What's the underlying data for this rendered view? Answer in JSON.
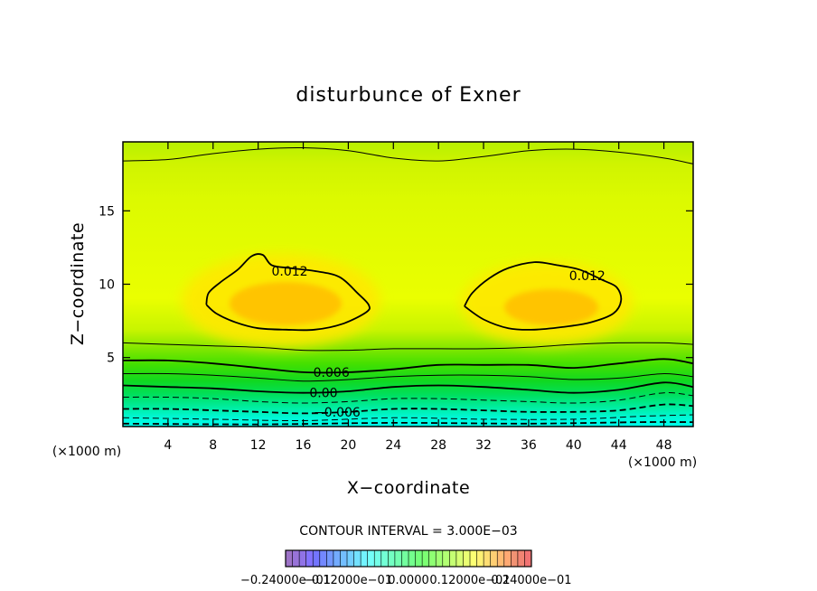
{
  "chart_data": {
    "type": "contour",
    "title": "disturbunce of Exner",
    "xlabel": "X−coordinate",
    "ylabel": "Z−coordinate",
    "x_unit": "(×1000 m)",
    "y_unit": "(×1000 m)",
    "xlim": [
      0,
      50.6
    ],
    "ylim": [
      0.3,
      19.7
    ],
    "x_ticks": [
      4,
      8,
      12,
      16,
      20,
      24,
      28,
      32,
      36,
      40,
      44,
      48
    ],
    "y_ticks": [
      5,
      10,
      15
    ],
    "contour_interval_text": "CONTOUR INTERVAL = 3.000E−03",
    "contour_interval": 0.003,
    "contour_labels": [
      {
        "text": "0.012",
        "x": 14.8,
        "y": 10.9
      },
      {
        "text": "0.012",
        "x": 41.2,
        "y": 10.6
      },
      {
        "text": "0.006",
        "x": 18.5,
        "y": 4.0
      },
      {
        "text": "0.00",
        "x": 17.8,
        "y": 2.6
      },
      {
        "text": "−0.006",
        "x": 19.0,
        "y": 1.3
      }
    ],
    "contours": [
      {
        "level": 0.012,
        "points": [
          [
            7.4,
            8.6
          ],
          [
            7.6,
            9.4
          ],
          [
            8.6,
            10.1
          ],
          [
            10.2,
            11.0
          ],
          [
            11.4,
            11.9
          ],
          [
            12.4,
            12.0
          ],
          [
            13.2,
            11.3
          ],
          [
            14.8,
            11.1
          ],
          [
            17.0,
            10.9
          ],
          [
            19.2,
            10.5
          ],
          [
            20.8,
            9.4
          ],
          [
            21.8,
            8.6
          ],
          [
            21.6,
            8.1
          ],
          [
            19.5,
            7.3
          ],
          [
            17.0,
            6.9
          ],
          [
            14.5,
            6.9
          ],
          [
            12.0,
            7.0
          ],
          [
            10.0,
            7.4
          ],
          [
            8.3,
            8.0
          ],
          [
            7.4,
            8.6
          ]
        ]
      },
      {
        "level": 0.012,
        "points": [
          [
            30.3,
            8.5
          ],
          [
            31.0,
            9.4
          ],
          [
            32.5,
            10.4
          ],
          [
            34.2,
            11.1
          ],
          [
            36.5,
            11.5
          ],
          [
            38.5,
            11.3
          ],
          [
            40.5,
            11.0
          ],
          [
            42.5,
            10.3
          ],
          [
            43.8,
            9.8
          ],
          [
            44.2,
            8.9
          ],
          [
            43.5,
            8.0
          ],
          [
            41.5,
            7.4
          ],
          [
            39.2,
            7.1
          ],
          [
            36.5,
            6.9
          ],
          [
            34.2,
            7.0
          ],
          [
            32.0,
            7.6
          ],
          [
            30.3,
            8.5
          ]
        ]
      },
      {
        "level": 0.003,
        "points": [
          [
            0,
            18.4
          ],
          [
            4,
            18.5
          ],
          [
            8,
            18.9
          ],
          [
            12,
            19.2
          ],
          [
            16,
            19.3
          ],
          [
            20,
            19.1
          ],
          [
            24,
            18.6
          ],
          [
            28,
            18.4
          ],
          [
            32,
            18.7
          ],
          [
            36,
            19.1
          ],
          [
            40,
            19.2
          ],
          [
            44,
            19.0
          ],
          [
            48,
            18.6
          ],
          [
            50.6,
            18.2
          ]
        ]
      },
      {
        "level": 0.009,
        "points": [
          [
            0,
            6.0
          ],
          [
            4,
            5.9
          ],
          [
            8,
            5.8
          ],
          [
            12,
            5.7
          ],
          [
            16,
            5.5
          ],
          [
            20,
            5.5
          ],
          [
            24,
            5.6
          ],
          [
            28,
            5.6
          ],
          [
            32,
            5.6
          ],
          [
            36,
            5.7
          ],
          [
            40,
            5.9
          ],
          [
            44,
            6.0
          ],
          [
            48,
            6.0
          ],
          [
            50.6,
            5.9
          ]
        ]
      },
      {
        "level": 0.006,
        "points": [
          [
            0,
            4.8
          ],
          [
            4,
            4.8
          ],
          [
            8,
            4.6
          ],
          [
            12,
            4.3
          ],
          [
            16,
            4.0
          ],
          [
            20,
            4.0
          ],
          [
            24,
            4.2
          ],
          [
            28,
            4.5
          ],
          [
            32,
            4.5
          ],
          [
            36,
            4.5
          ],
          [
            40,
            4.3
          ],
          [
            44,
            4.6
          ],
          [
            48,
            4.9
          ],
          [
            50.6,
            4.6
          ]
        ]
      },
      {
        "level": 0.003,
        "points": [
          [
            0,
            3.9
          ],
          [
            4,
            3.9
          ],
          [
            8,
            3.8
          ],
          [
            12,
            3.6
          ],
          [
            16,
            3.4
          ],
          [
            20,
            3.5
          ],
          [
            24,
            3.7
          ],
          [
            28,
            3.8
          ],
          [
            32,
            3.8
          ],
          [
            36,
            3.7
          ],
          [
            40,
            3.5
          ],
          [
            44,
            3.6
          ],
          [
            48,
            3.9
          ],
          [
            50.6,
            3.7
          ]
        ]
      },
      {
        "level": 0.0,
        "points": [
          [
            0,
            3.1
          ],
          [
            4,
            3.0
          ],
          [
            8,
            2.9
          ],
          [
            12,
            2.7
          ],
          [
            16,
            2.6
          ],
          [
            20,
            2.7
          ],
          [
            24,
            3.0
          ],
          [
            28,
            3.1
          ],
          [
            32,
            3.0
          ],
          [
            36,
            2.8
          ],
          [
            40,
            2.6
          ],
          [
            44,
            2.8
          ],
          [
            48,
            3.3
          ],
          [
            50.6,
            3.0
          ]
        ]
      },
      {
        "level": -0.003,
        "points": [
          [
            0,
            2.3
          ],
          [
            4,
            2.3
          ],
          [
            8,
            2.2
          ],
          [
            12,
            2.0
          ],
          [
            16,
            1.9
          ],
          [
            20,
            2.0
          ],
          [
            24,
            2.2
          ],
          [
            28,
            2.2
          ],
          [
            32,
            2.1
          ],
          [
            36,
            2.0
          ],
          [
            40,
            1.9
          ],
          [
            44,
            2.1
          ],
          [
            48,
            2.6
          ],
          [
            50.6,
            2.4
          ]
        ]
      },
      {
        "level": -0.006,
        "points": [
          [
            0,
            1.5
          ],
          [
            4,
            1.5
          ],
          [
            8,
            1.4
          ],
          [
            12,
            1.3
          ],
          [
            16,
            1.2
          ],
          [
            20,
            1.3
          ],
          [
            24,
            1.5
          ],
          [
            28,
            1.5
          ],
          [
            32,
            1.4
          ],
          [
            36,
            1.3
          ],
          [
            40,
            1.3
          ],
          [
            44,
            1.4
          ],
          [
            48,
            1.8
          ],
          [
            50.6,
            1.7
          ]
        ]
      },
      {
        "level": -0.009,
        "points": [
          [
            0,
            0.9
          ],
          [
            8,
            0.8
          ],
          [
            16,
            0.7
          ],
          [
            24,
            0.9
          ],
          [
            32,
            0.8
          ],
          [
            40,
            0.8
          ],
          [
            46,
            1.0
          ],
          [
            50.6,
            1.1
          ]
        ]
      },
      {
        "level": -0.012,
        "points": [
          [
            0,
            0.5
          ],
          [
            12,
            0.45
          ],
          [
            24,
            0.55
          ],
          [
            36,
            0.5
          ],
          [
            46,
            0.6
          ],
          [
            50.6,
            0.6
          ]
        ]
      }
    ],
    "colorbar": {
      "labels": [
        "−0.24000e−01",
        "−0.12000e−01",
        "0.0000",
        "0.12000e−01",
        "0.24000e−01"
      ],
      "min": -0.024,
      "max": 0.024,
      "n_bins": 36
    },
    "colors": {
      "background": "#ffffff",
      "max_core": "#ffc800",
      "upper_field": "#d4f500",
      "surface_min": "#00ffee"
    }
  }
}
